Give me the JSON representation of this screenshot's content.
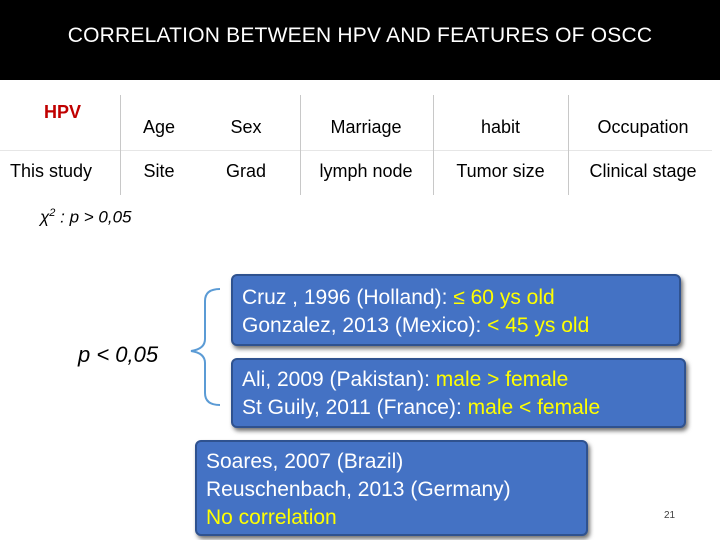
{
  "title": "CORRELATION BETWEEN HPV AND FEATURES  OF OSCC",
  "table": {
    "hpv_label": "HPV",
    "study_label": "This study",
    "row1": [
      "Age",
      "Sex",
      "Marriage",
      "habit",
      "Occupation"
    ],
    "row2": [
      "Site",
      "Grad",
      "lymph node",
      "Tumor size",
      "Clinical stage"
    ]
  },
  "chi": {
    "symbol": "χ",
    "sup": "2",
    "text": " : p > 0,05"
  },
  "p_label": "p < 0,05",
  "boxes": {
    "age": {
      "line1_prefix": "Cruz , 1996 (Holland): ",
      "line1_value": "≤ 60 ys old",
      "line2_prefix": "Gonzalez, 2013 (Mexico): ",
      "line2_value": "< 45 ys old"
    },
    "sex": {
      "line1_prefix": "Ali, 2009 (Pakistan): ",
      "line1_value": "male > female",
      "line2_prefix": "St Guily, 2011 (France): ",
      "line2_value": "male < female"
    },
    "none": {
      "line1": "Soares, 2007 (Brazil)",
      "line2": "Reuschenbach, 2013 (Germany)",
      "line3": "No correlation"
    }
  },
  "page_number": "21",
  "colors": {
    "box_fill": "#4472c4",
    "highlight": "#ffff00",
    "hpv_red": "#c00000"
  }
}
